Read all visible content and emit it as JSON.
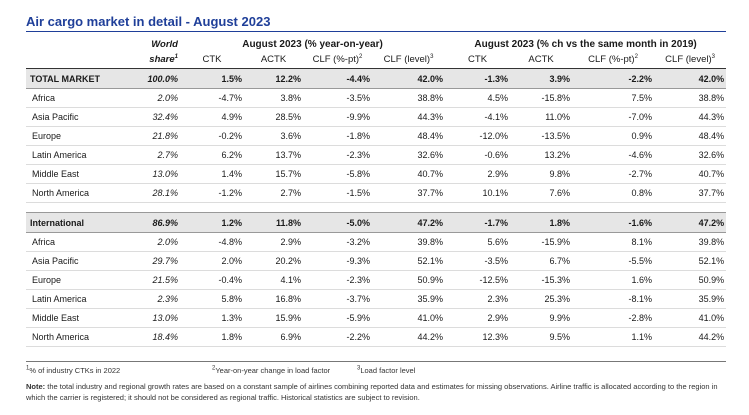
{
  "title": "Air cargo market in detail - August 2023",
  "header": {
    "world_share_line1": "World",
    "world_share_line2": "share",
    "world_share_sup": "1",
    "group1": "August 2023 (% year-on-year)",
    "group2": "August 2023 (% ch vs the same month in 2019)",
    "columns": [
      "CTK",
      "ACTK",
      "CLF (%-pt)",
      "CLF (level)"
    ],
    "col_sups": [
      "",
      "",
      "2",
      "3"
    ]
  },
  "total_market": {
    "region": "TOTAL MARKET",
    "share": "100.0%",
    "yoy": [
      "1.5%",
      "12.2%",
      "-4.4%",
      "42.0%"
    ],
    "vs2019": [
      "-1.3%",
      "3.9%",
      "-2.2%",
      "42.0%"
    ]
  },
  "total_rows": [
    {
      "region": "Africa",
      "share": "2.0%",
      "yoy": [
        "-4.7%",
        "3.8%",
        "-3.5%",
        "38.8%"
      ],
      "vs2019": [
        "4.5%",
        "-15.8%",
        "7.5%",
        "38.8%"
      ]
    },
    {
      "region": "Asia Pacific",
      "share": "32.4%",
      "yoy": [
        "4.9%",
        "28.5%",
        "-9.9%",
        "44.3%"
      ],
      "vs2019": [
        "-4.1%",
        "11.0%",
        "-7.0%",
        "44.3%"
      ]
    },
    {
      "region": "Europe",
      "share": "21.8%",
      "yoy": [
        "-0.2%",
        "3.6%",
        "-1.8%",
        "48.4%"
      ],
      "vs2019": [
        "-12.0%",
        "-13.5%",
        "0.9%",
        "48.4%"
      ]
    },
    {
      "region": "Latin America",
      "share": "2.7%",
      "yoy": [
        "6.2%",
        "13.7%",
        "-2.3%",
        "32.6%"
      ],
      "vs2019": [
        "-0.6%",
        "13.2%",
        "-4.6%",
        "32.6%"
      ]
    },
    {
      "region": "Middle East",
      "share": "13.0%",
      "yoy": [
        "1.4%",
        "15.7%",
        "-5.8%",
        "40.7%"
      ],
      "vs2019": [
        "2.9%",
        "9.8%",
        "-2.7%",
        "40.7%"
      ]
    },
    {
      "region": "North America",
      "share": "28.1%",
      "yoy": [
        "-1.2%",
        "2.7%",
        "-1.5%",
        "37.7%"
      ],
      "vs2019": [
        "10.1%",
        "7.6%",
        "0.8%",
        "37.7%"
      ]
    }
  ],
  "international": {
    "region": "International",
    "share": "86.9%",
    "yoy": [
      "1.2%",
      "11.8%",
      "-5.0%",
      "47.2%"
    ],
    "vs2019": [
      "-1.7%",
      "1.8%",
      "-1.6%",
      "47.2%"
    ]
  },
  "international_rows": [
    {
      "region": "Africa",
      "share": "2.0%",
      "yoy": [
        "-4.8%",
        "2.9%",
        "-3.2%",
        "39.8%"
      ],
      "vs2019": [
        "5.6%",
        "-15.9%",
        "8.1%",
        "39.8%"
      ]
    },
    {
      "region": "Asia Pacific",
      "share": "29.7%",
      "yoy": [
        "2.0%",
        "20.2%",
        "-9.3%",
        "52.1%"
      ],
      "vs2019": [
        "-3.5%",
        "6.7%",
        "-5.5%",
        "52.1%"
      ]
    },
    {
      "region": "Europe",
      "share": "21.5%",
      "yoy": [
        "-0.4%",
        "4.1%",
        "-2.3%",
        "50.9%"
      ],
      "vs2019": [
        "-12.5%",
        "-15.3%",
        "1.6%",
        "50.9%"
      ]
    },
    {
      "region": "Latin America",
      "share": "2.3%",
      "yoy": [
        "5.8%",
        "16.8%",
        "-3.7%",
        "35.9%"
      ],
      "vs2019": [
        "2.3%",
        "25.3%",
        "-8.1%",
        "35.9%"
      ]
    },
    {
      "region": "Middle East",
      "share": "13.0%",
      "yoy": [
        "1.3%",
        "15.9%",
        "-5.9%",
        "41.0%"
      ],
      "vs2019": [
        "2.9%",
        "9.9%",
        "-2.8%",
        "41.0%"
      ]
    },
    {
      "region": "North America",
      "share": "18.4%",
      "yoy": [
        "1.8%",
        "6.9%",
        "-2.2%",
        "44.2%"
      ],
      "vs2019": [
        "12.3%",
        "9.5%",
        "1.1%",
        "44.2%"
      ]
    }
  ],
  "footnotes": {
    "fn1_sup": "1",
    "fn1": "% of industry CTKs in 2022",
    "fn2_sup": "2",
    "fn2": "Year-on-year change in load factor",
    "fn3_sup": "3",
    "fn3": "Load factor level"
  },
  "note": {
    "label": "Note:",
    "text": " the total industry and regional growth rates are based on a constant sample of airlines combining reported data and estimates for missing observations. Airline traffic is allocated according to the region in which the carrier is registered; it should not be considered as regional traffic. Historical statistics are subject to revision."
  },
  "colors": {
    "title": "#1f3f99",
    "highlight_row": "#e6e6e6"
  }
}
